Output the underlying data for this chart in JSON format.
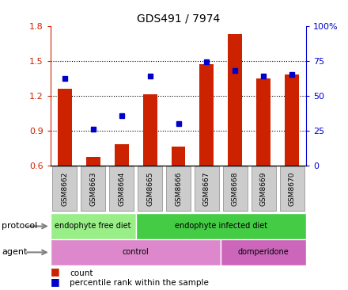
{
  "title": "GDS491 / 7974",
  "samples": [
    "GSM8662",
    "GSM8663",
    "GSM8664",
    "GSM8665",
    "GSM8666",
    "GSM8667",
    "GSM8668",
    "GSM8669",
    "GSM8670"
  ],
  "counts": [
    1.26,
    0.67,
    0.78,
    1.21,
    0.76,
    1.47,
    1.73,
    1.35,
    1.38
  ],
  "percentiles": [
    1.35,
    0.91,
    1.03,
    1.37,
    0.96,
    1.49,
    1.42,
    1.37,
    1.38
  ],
  "ylim": [
    0.6,
    1.8
  ],
  "yticks": [
    0.6,
    0.9,
    1.2,
    1.5,
    1.8
  ],
  "right_yticks": [
    0,
    25,
    50,
    75,
    100
  ],
  "right_ylabels": [
    "0",
    "25",
    "50",
    "75",
    "100%"
  ],
  "bar_color": "#cc2200",
  "dot_color": "#0000cc",
  "bar_width": 0.5,
  "protocol_groups": [
    {
      "label": "endophyte free diet",
      "start": 0,
      "end": 3,
      "color": "#99ee88"
    },
    {
      "label": "endophyte infected diet",
      "start": 3,
      "end": 9,
      "color": "#44cc44"
    }
  ],
  "agent_groups": [
    {
      "label": "control",
      "start": 0,
      "end": 6,
      "color": "#dd88cc"
    },
    {
      "label": "domperidone",
      "start": 6,
      "end": 9,
      "color": "#cc66bb"
    }
  ],
  "protocol_label": "protocol",
  "agent_label": "agent",
  "legend_count_label": "count",
  "legend_percentile_label": "percentile rank within the sample",
  "bg_color": "#ffffff",
  "tick_label_color_left": "#cc2200",
  "tick_label_color_right": "#0000cc",
  "sample_box_color": "#cccccc",
  "sample_box_edge": "#888888"
}
